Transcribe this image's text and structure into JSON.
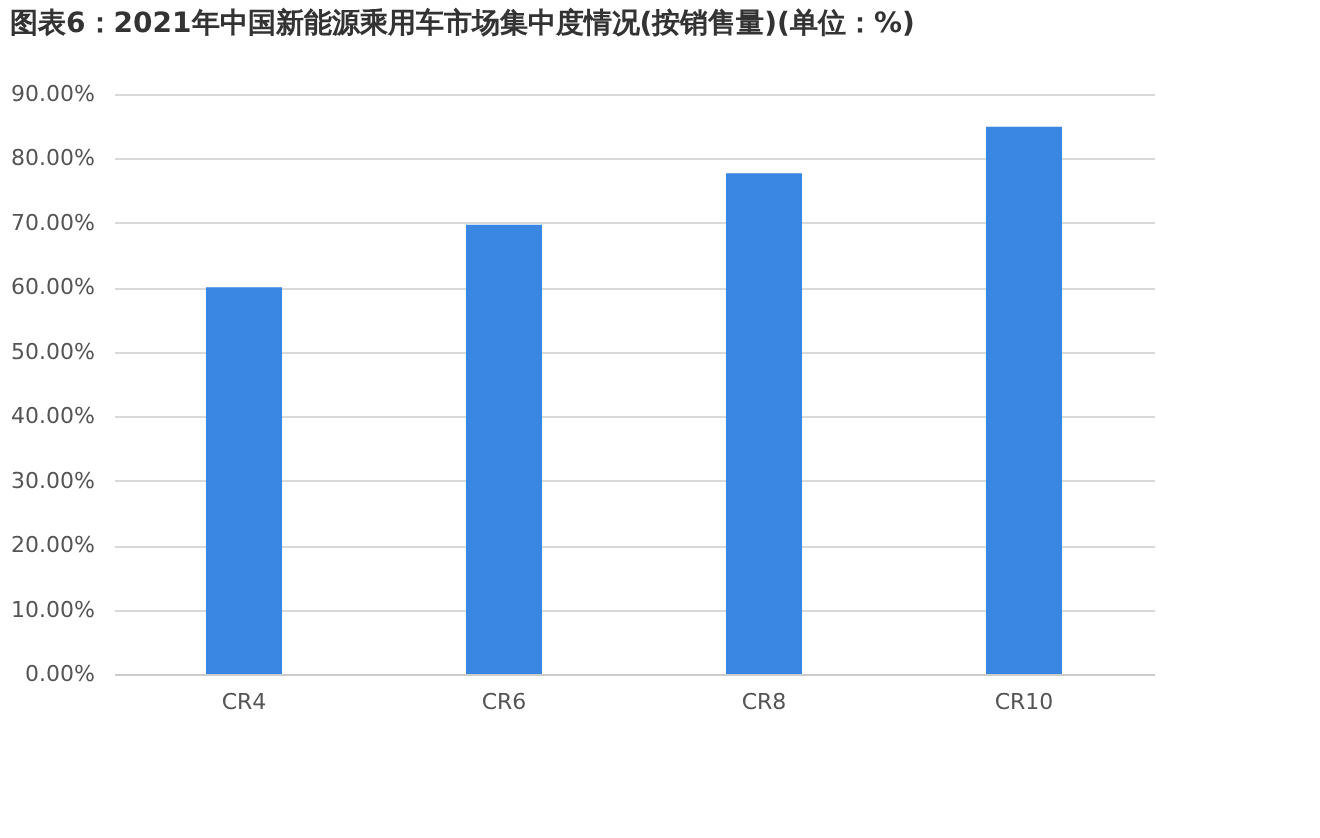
{
  "chart_data": {
    "type": "bar",
    "title": "图表6：2021年中国新能源乘用车市场集中度情况(按销售量)(单位：%)",
    "categories": [
      "CR4",
      "CR6",
      "CR8",
      "CR10"
    ],
    "values": [
      60.0,
      69.7,
      77.7,
      84.9
    ],
    "color": "#3a86e3",
    "ylim": [
      0,
      90
    ],
    "yticks": [
      {
        "value": 0,
        "label": "0.00%"
      },
      {
        "value": 10,
        "label": "10.00%"
      },
      {
        "value": 20,
        "label": "20.00%"
      },
      {
        "value": 30,
        "label": "30.00%"
      },
      {
        "value": 40,
        "label": "40.00%"
      },
      {
        "value": 50,
        "label": "50.00%"
      },
      {
        "value": 60,
        "label": "60.00%"
      },
      {
        "value": 70,
        "label": "70.00%"
      },
      {
        "value": 80,
        "label": "80.00%"
      },
      {
        "value": 90,
        "label": "90.00%"
      }
    ],
    "grid": "y"
  }
}
